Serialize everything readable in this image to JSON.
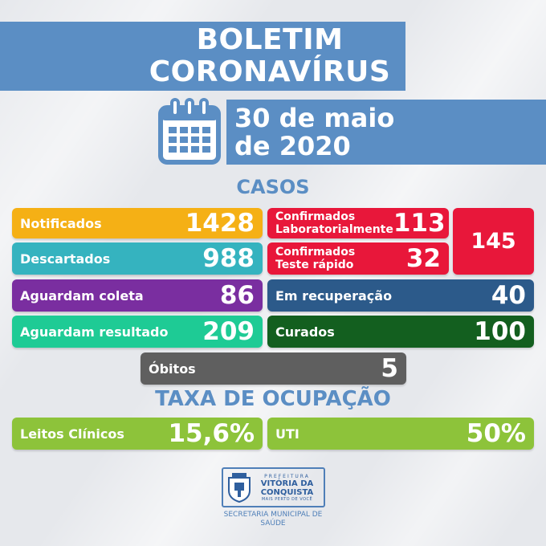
{
  "header": {
    "title_line1": "BOLETIM",
    "title_line2": "CORONAVÍRUS",
    "date_line1": "30 de maio",
    "date_line2": "de 2020"
  },
  "icons": {
    "calendar": "calendar-icon",
    "coat_of_arms": "coat-of-arms-icon"
  },
  "casos": {
    "title": "CASOS",
    "notificados": {
      "label": "Notificados",
      "value": "1428",
      "color": "#f5b015"
    },
    "descartados": {
      "label": "Descartados",
      "value": "988",
      "color": "#35b3bf"
    },
    "aguardam_coleta": {
      "label": "Aguardam coleta",
      "value": "86",
      "color": "#7a2ea0"
    },
    "aguardam_resultado": {
      "label": "Aguardam resultado",
      "value": "209",
      "color": "#1ecb95"
    },
    "confirmados_lab": {
      "label_line1": "Confirmados",
      "label_line2": "Laboratorialmente",
      "value": "113",
      "color": "#e8173a"
    },
    "confirmados_rapido": {
      "label_line1": "Confirmados",
      "label_line2": "Teste rápido",
      "value": "32",
      "color": "#e8173a"
    },
    "total_confirmados": {
      "value": "145",
      "color": "#e8173a"
    },
    "em_recuperacao": {
      "label": "Em recuperação",
      "value": "40",
      "color": "#2c5a8a"
    },
    "curados": {
      "label": "Curados",
      "value": "100",
      "color": "#135f1f"
    },
    "obitos": {
      "label": "Óbitos",
      "value": "5",
      "color": "#5f5f5f"
    }
  },
  "ocupacao": {
    "title": "TAXA DE OCUPAÇÃO",
    "leitos": {
      "label": "Leitos Clínicos",
      "value": "15,6%",
      "color": "#8dc33a"
    },
    "uti": {
      "label": "UTI",
      "value": "50%",
      "color": "#8dc33a"
    }
  },
  "logo": {
    "small": "PREFEITURA",
    "line1": "VITÓRIA DA",
    "line2": "CONQUISTA",
    "tagline": "MAIS PERTO DE VOCÊ"
  },
  "footer": {
    "line1": "SECRETARIA MUNICIPAL DE",
    "line2": "SAÚDE"
  }
}
